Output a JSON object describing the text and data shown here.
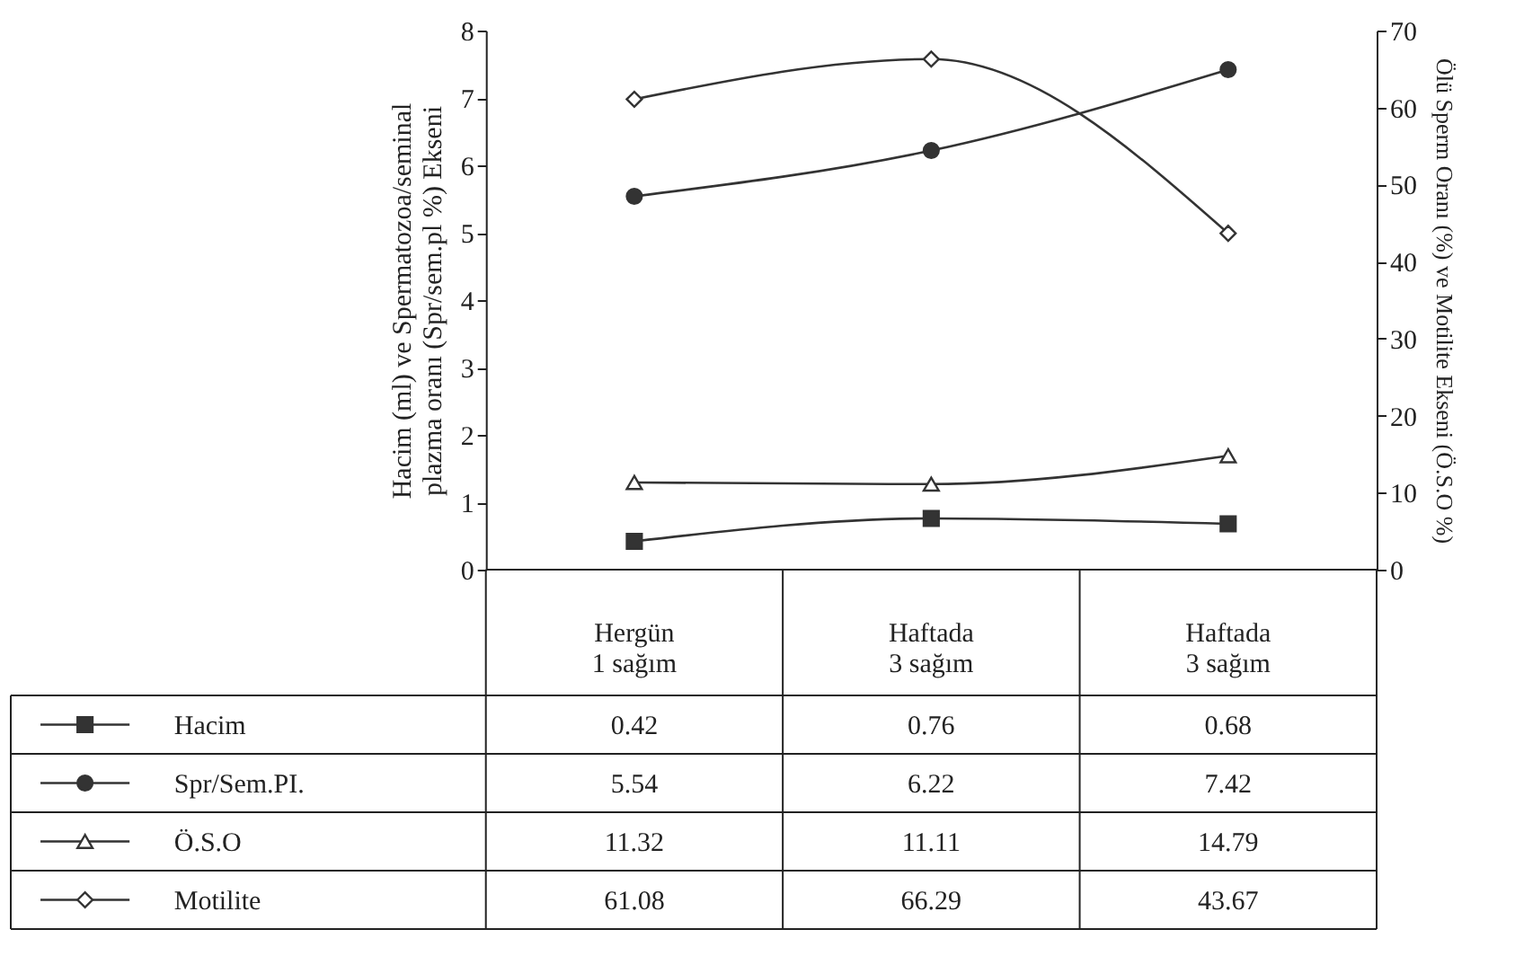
{
  "chart_data": {
    "type": "line",
    "categories": [
      "Hergün\n1 sağım",
      "Haftada\n3 sağım",
      "Haftada\n3 sağım"
    ],
    "ylabel": "Hacim (ml) ve Spermatozoa/seminal\nplazma oranı (Spr/sem.pl %) Ekseni",
    "y2label": "Ölü Sperm Oranı (%) ve Motilite Ekseni (Ö.S.O %)",
    "ylim": [
      0,
      8
    ],
    "yticks": [
      0,
      1,
      2,
      3,
      4,
      5,
      6,
      7,
      8
    ],
    "y2lim": [
      0,
      70
    ],
    "y2ticks": [
      0,
      10,
      20,
      30,
      40,
      50,
      60,
      70
    ],
    "data_labels": true,
    "legend": "bottom left",
    "grid": false,
    "series": [
      {
        "name": "Hacim",
        "color": "#333333",
        "marker": "square",
        "values": [
          0.42,
          0.76,
          0.68
        ]
      },
      {
        "name": "Spr/Sem.PI.",
        "color": "#333333",
        "marker": "circle",
        "values": [
          5.54,
          6.22,
          7.42
        ]
      },
      {
        "name": "Ö.S.O",
        "color": "#333333",
        "marker": "triangle",
        "axis": "y2",
        "values": [
          11.32,
          11.11,
          14.79
        ]
      },
      {
        "name": "Motilite",
        "color": "#333333",
        "marker": "diamond",
        "axis": "y2",
        "values": [
          61.08,
          66.29,
          43.67
        ]
      }
    ]
  }
}
